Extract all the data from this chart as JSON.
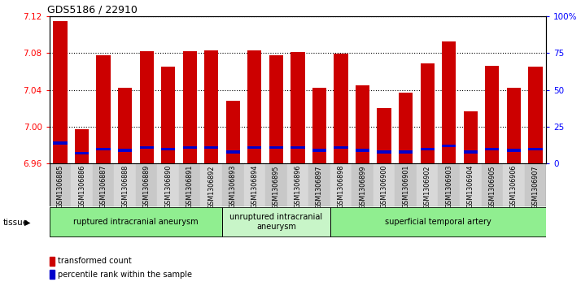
{
  "title": "GDS5186 / 22910",
  "samples": [
    "GSM1306885",
    "GSM1306886",
    "GSM1306887",
    "GSM1306888",
    "GSM1306889",
    "GSM1306890",
    "GSM1306891",
    "GSM1306892",
    "GSM1306893",
    "GSM1306894",
    "GSM1306895",
    "GSM1306896",
    "GSM1306897",
    "GSM1306898",
    "GSM1306899",
    "GSM1306900",
    "GSM1306901",
    "GSM1306902",
    "GSM1306903",
    "GSM1306904",
    "GSM1306905",
    "GSM1306906",
    "GSM1306907"
  ],
  "red_values": [
    7.115,
    6.997,
    7.078,
    7.042,
    7.082,
    7.065,
    7.082,
    7.083,
    7.028,
    7.083,
    7.078,
    7.081,
    7.042,
    7.079,
    7.045,
    7.02,
    7.037,
    7.069,
    7.093,
    7.017,
    7.066,
    7.042,
    7.065
  ],
  "blue_percentiles": [
    14,
    7,
    10,
    9,
    11,
    10,
    11,
    11,
    8,
    11,
    11,
    11,
    9,
    11,
    9,
    8,
    8,
    10,
    12,
    8,
    10,
    9,
    10
  ],
  "ylim_left": [
    6.96,
    7.12
  ],
  "ylim_right": [
    0,
    100
  ],
  "yticks_left": [
    6.96,
    7.0,
    7.04,
    7.08,
    7.12
  ],
  "yticks_right": [
    0,
    25,
    50,
    75,
    100
  ],
  "ytick_labels_right": [
    "0",
    "25",
    "50",
    "75",
    "100%"
  ],
  "groups": [
    {
      "label": "ruptured intracranial aneurysm",
      "start": 0,
      "end": 8,
      "color": "#90EE90"
    },
    {
      "label": "unruptured intracranial\naneurysm",
      "start": 8,
      "end": 13,
      "color": "#c8f5c8"
    },
    {
      "label": "superficial temporal artery",
      "start": 13,
      "end": 23,
      "color": "#90EE90"
    }
  ],
  "red_color": "#cc0000",
  "blue_color": "#0000cc",
  "bar_width": 0.65,
  "base_value": 6.96,
  "legend_items": [
    {
      "label": "transformed count",
      "color": "#cc0000"
    },
    {
      "label": "percentile rank within the sample",
      "color": "#0000cc"
    }
  ],
  "tissue_label": "tissue"
}
